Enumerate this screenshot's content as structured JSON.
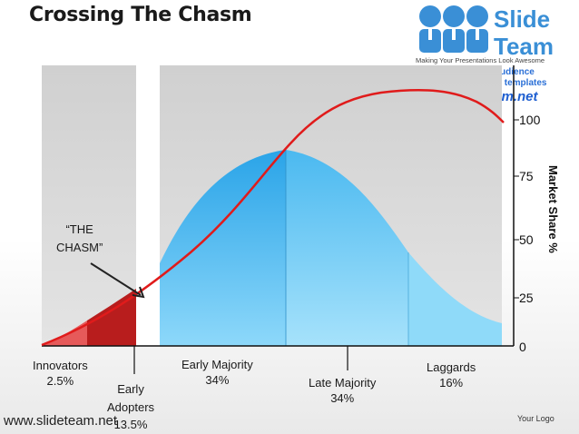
{
  "title": "Crossing The Chasm",
  "logo": {
    "word1": "Slide",
    "word2": "Team",
    "tagline": "Making Your Presentations Look Awesome",
    "promo_line1": "Amaze your audience",
    "promo_line2": "Download unlimited templates",
    "promo_url": "www.slideteam.net"
  },
  "chasm_label": "“THE\nCHASM”",
  "y_axis": {
    "title": "Market Share %",
    "ticks": [
      "0",
      "25",
      "50",
      "75",
      "100"
    ]
  },
  "segments": [
    {
      "name": "Innovators",
      "value": "2.5%"
    },
    {
      "name": "Early\nAdopters",
      "value": "13.5%"
    },
    {
      "name": "Early Majority",
      "value": "34%"
    },
    {
      "name": "Late Majority",
      "value": "34%"
    },
    {
      "name": "Laggards",
      "value": "16%"
    }
  ],
  "footer": {
    "url": "www.slideteam.net",
    "logo_text": "Your Logo"
  },
  "colors": {
    "curve": "#e01b1b",
    "bell_light": "#7fd0f7",
    "bell_dark": "#31a8ea",
    "early_adopters": "#b81d1d",
    "innovators": "#e04848",
    "panel_grey": "#d4d4d4"
  }
}
